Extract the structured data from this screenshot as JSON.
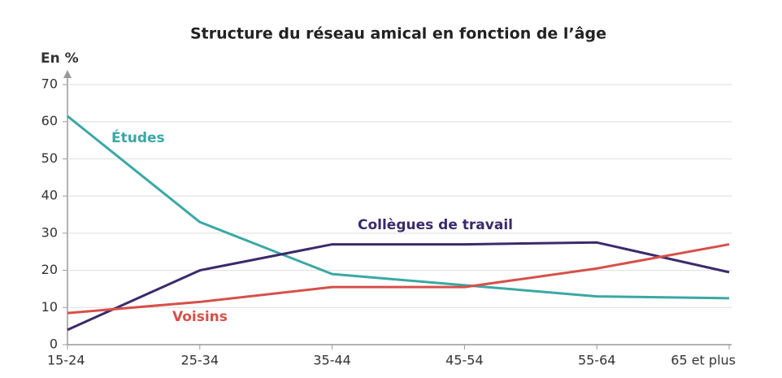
{
  "chart_data": {
    "type": "line",
    "title": "Structure du réseau amical en fonction de l’âge",
    "y_label": "En %",
    "categories": [
      "15-24",
      "25-34",
      "35-44",
      "45-54",
      "55-64",
      "65 et plus"
    ],
    "series": [
      {
        "name": "Études",
        "color": "#3aa8a4",
        "values": [
          61.5,
          33,
          19,
          16,
          13,
          12.5
        ]
      },
      {
        "name": "Collègues de travail",
        "color": "#3b2a6b",
        "values": [
          4,
          20,
          27,
          27,
          27.5,
          19.5
        ]
      },
      {
        "name": "Voisins",
        "color": "#d6504a",
        "values": [
          8.5,
          11.5,
          15.5,
          15.5,
          20.5,
          27
        ]
      }
    ],
    "ylim": [
      0,
      70
    ],
    "yticks": [
      0,
      10,
      20,
      30,
      40,
      50,
      60,
      70
    ],
    "grid": true
  }
}
